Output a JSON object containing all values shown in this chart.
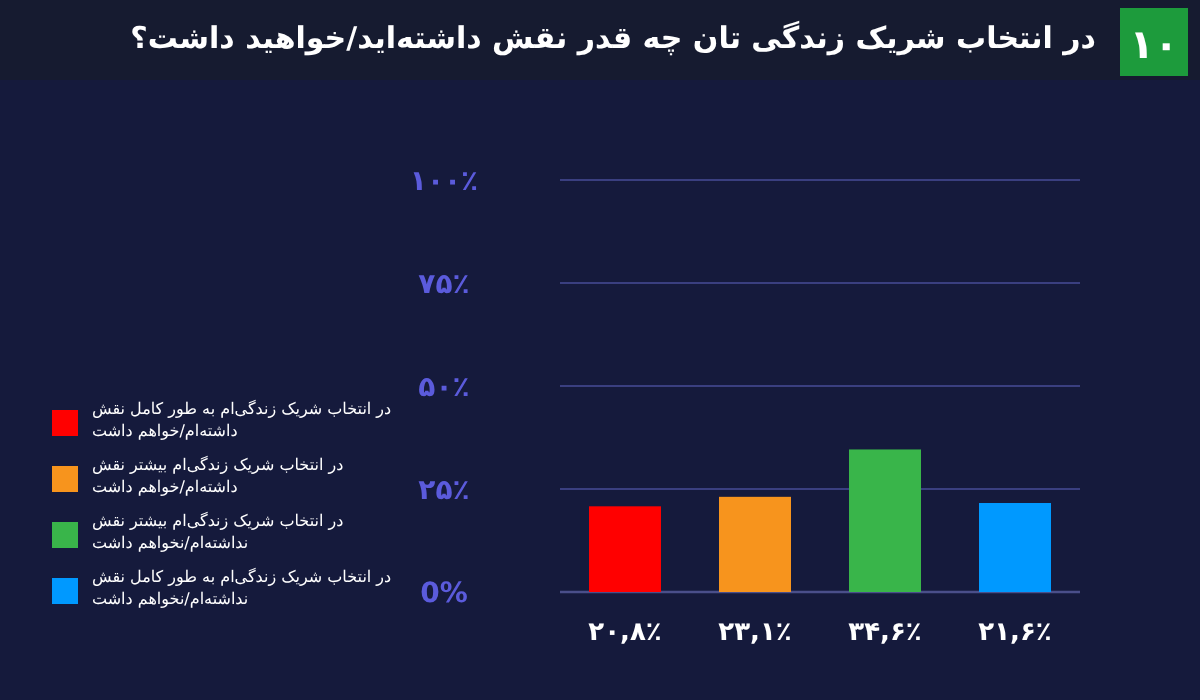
{
  "chart_data": {
    "type": "bar",
    "title": "در انتخاب شریک زندگی تان چه قدر نقش  داشته‌اید/خواهید داشت؟",
    "annotations": [
      "۱۰"
    ],
    "categories": [
      null,
      null,
      null,
      null
    ],
    "series": [
      {
        "name": "در انتخاب شریک زندگی‌ام به طور کامل نقش داشته‌ام/خواهم داشت",
        "color": "#ff0000",
        "values": [
          20.8,
          null,
          null,
          null
        ]
      },
      {
        "name": "در انتخاب شریک زندگی‌ام بیشتر نقش داشته‌ام/خواهم داشت",
        "color": "#f7941d",
        "values": [
          null,
          23.1,
          null,
          null
        ]
      },
      {
        "name": "در انتخاب شریک زندگی‌ام بیشتر نقش نداشته‌ام/نخواهم داشت",
        "color": "#39b54a",
        "values": [
          null,
          null,
          34.6,
          null
        ]
      },
      {
        "name": "در انتخاب شریک زندگی‌ام به طور کامل نقش نداشته‌ام/نخواهم داشت",
        "color": "#0099ff",
        "values": [
          null,
          null,
          null,
          21.6
        ]
      }
    ],
    "value_labels": [
      "۲۰,۸٪",
      "۲۳,۱٪",
      "۳۴,۶٪",
      "۲۱,۶٪"
    ],
    "ylim": [
      0,
      100
    ],
    "yticks": [
      {
        "value": 0,
        "label": "0%"
      },
      {
        "value": 25,
        "label": "۲۵٪"
      },
      {
        "value": 50,
        "label": "۵۰٪"
      },
      {
        "value": 75,
        "label": "۷۵٪"
      },
      {
        "value": 100,
        "label": "۱۰۰٪"
      }
    ],
    "grid": "y",
    "legend": "left"
  }
}
